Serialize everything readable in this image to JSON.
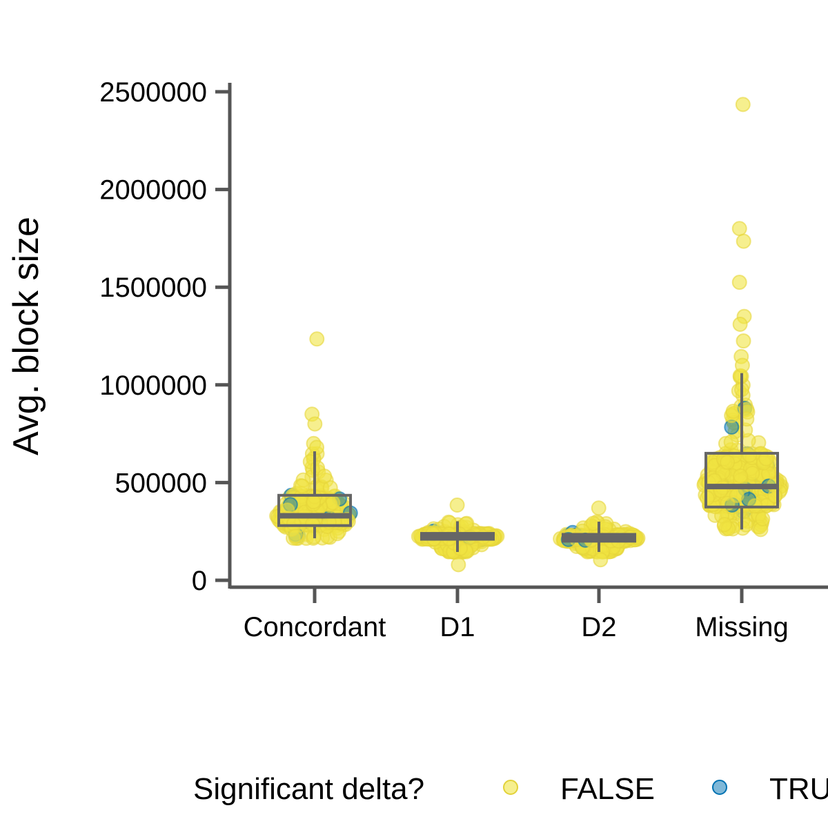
{
  "chart_data": {
    "type": "boxplot",
    "title": "",
    "xlabel": "",
    "ylabel": "Avg. block size",
    "ylim": [
      0,
      2500000
    ],
    "yticks": [
      0,
      500000,
      1000000,
      1500000,
      2000000,
      2500000
    ],
    "ytick_labels": [
      "0",
      "500000",
      "1000000",
      "1500000",
      "2000000",
      "2500000"
    ],
    "categories": [
      "Concordant",
      "D1",
      "D2",
      "Missing"
    ],
    "boxes": [
      {
        "category": "Concordant",
        "min": 215000,
        "q1": 280000,
        "median": 330000,
        "q3": 435000,
        "max": 660000
      },
      {
        "category": "D1",
        "min": 145000,
        "q1": 210000,
        "median": 222000,
        "q3": 240000,
        "max": 302000
      },
      {
        "category": "D2",
        "min": 145000,
        "q1": 200000,
        "median": 215000,
        "q3": 235000,
        "max": 300000
      },
      {
        "category": "Missing",
        "min": 260000,
        "q1": 375000,
        "median": 480000,
        "q3": 650000,
        "max": 1060000
      }
    ],
    "outliers": [
      {
        "category": "Concordant",
        "values": [
          1235000,
          850000,
          800000,
          700000,
          680000
        ]
      },
      {
        "category": "D1",
        "values": [
          80000,
          385000
        ]
      },
      {
        "category": "D2",
        "values": [
          105000,
          370000
        ]
      },
      {
        "category": "Missing",
        "values": [
          2435000,
          1800000,
          1735000,
          1525000,
          1350000,
          1310000,
          1225000,
          1145000,
          1100000
        ]
      }
    ],
    "legend": {
      "title": "Significant delta?",
      "position": "bottom",
      "entries": [
        {
          "label": "FALSE",
          "color": "#f0e442"
        },
        {
          "label": "TRUE",
          "color": "#0072b2"
        }
      ]
    },
    "colors": {
      "false": "#f0e442",
      "true": "#0072b2",
      "box": "#666666",
      "axis": "#555555"
    }
  }
}
